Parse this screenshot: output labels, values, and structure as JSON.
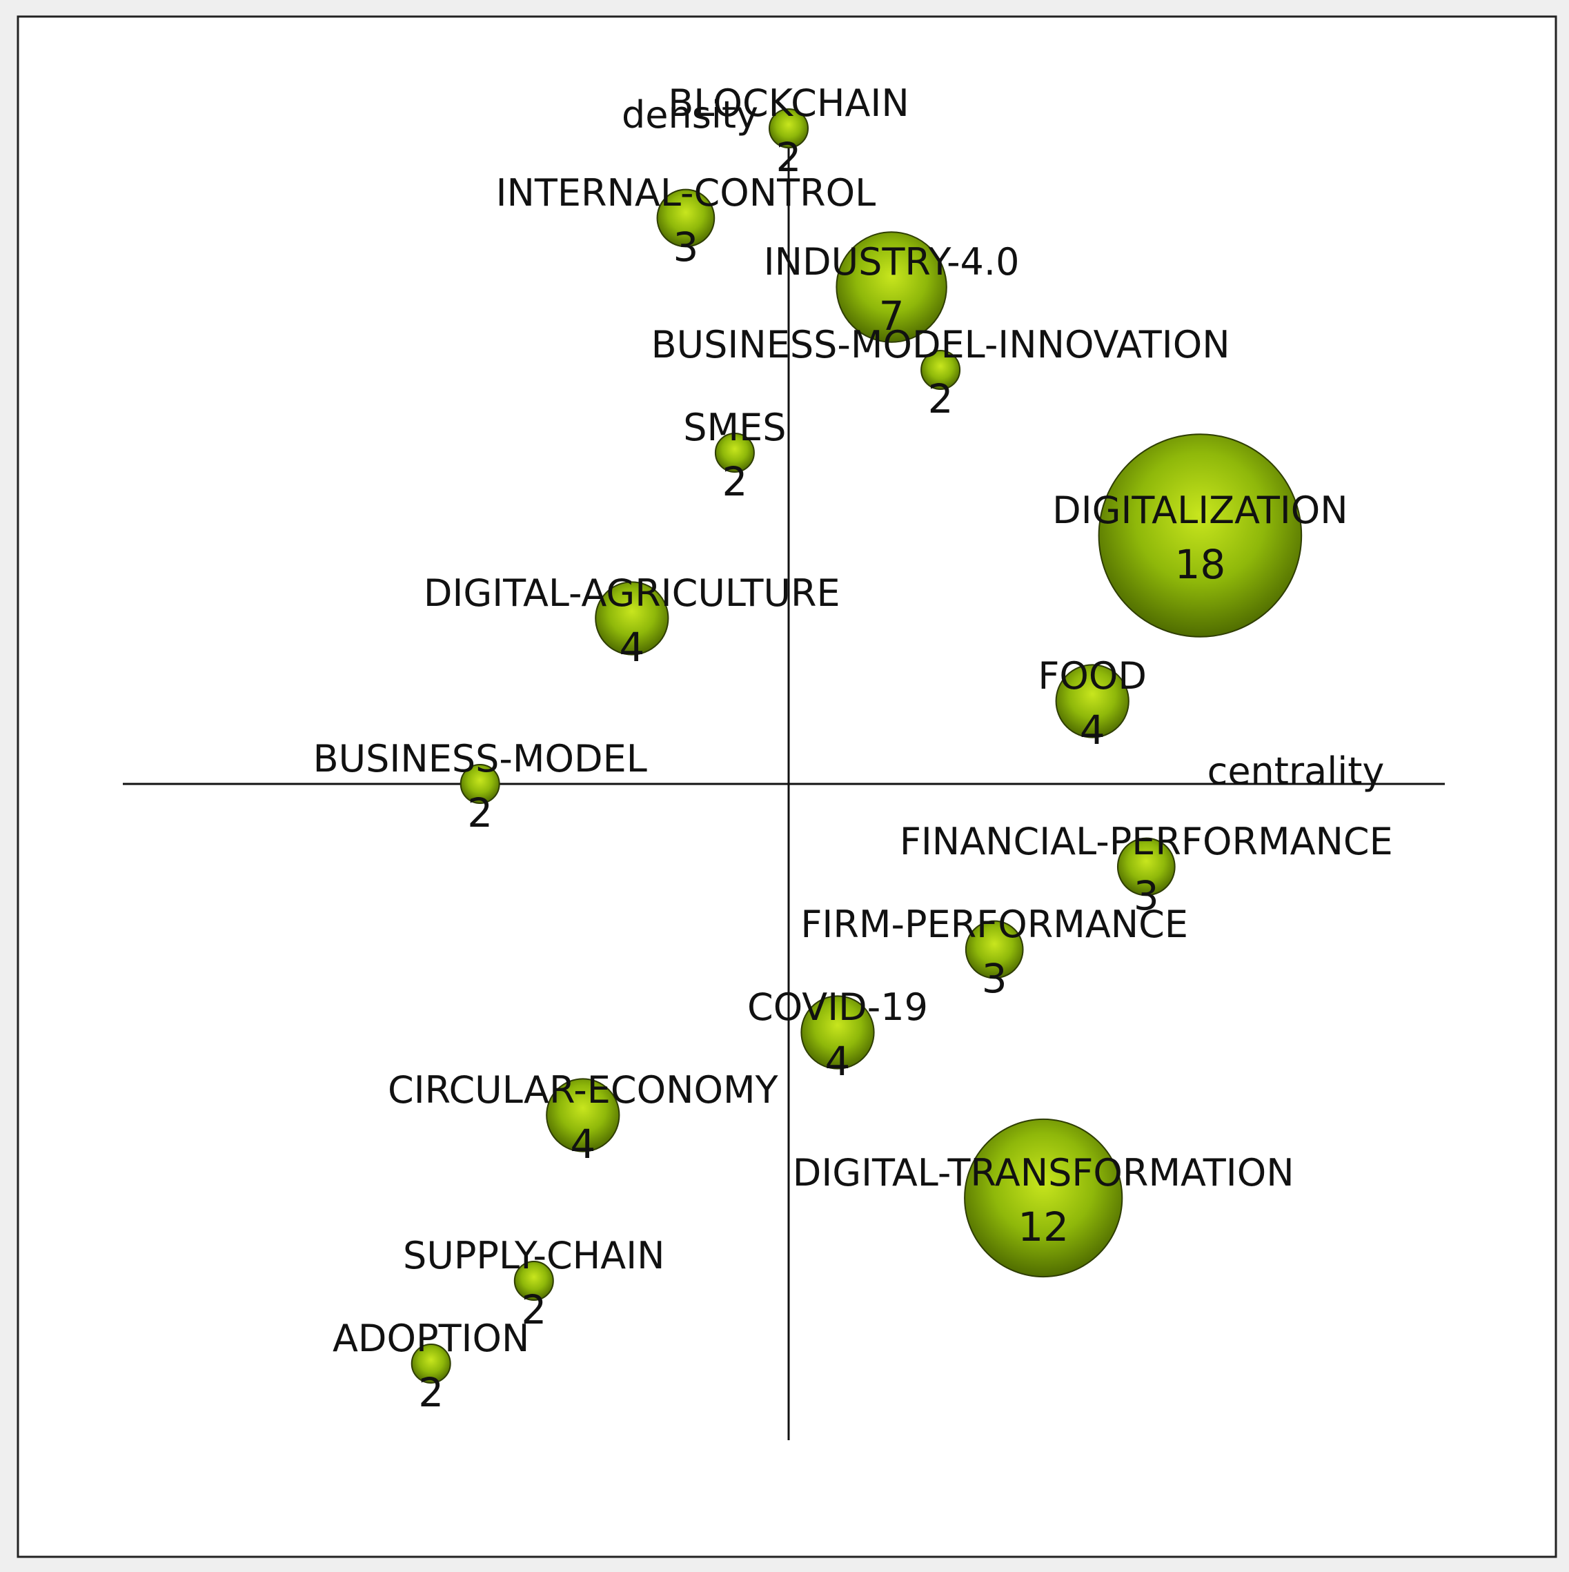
{
  "chart_data": {
    "type": "bubble-strategic-diagram",
    "xlabel": "centrality",
    "ylabel": "density",
    "bubble_color": "#8fb80a",
    "bubble_highlight": "#c8e61e",
    "bubble_dark": "#4f6c00",
    "themes": [
      {
        "name": "BLOCKCHAIN",
        "count": "2",
        "x": 0.0,
        "y": 9.5
      },
      {
        "name": "INTERNAL-CONTROL",
        "count": "3",
        "x": -2.1,
        "y": 8.2
      },
      {
        "name": "INDUSTRY-4.0",
        "count": "7",
        "x": 2.1,
        "y": 7.2
      },
      {
        "name": "BUSINESS-MODEL-INNOVATION",
        "count": "2",
        "x": 3.1,
        "y": 6.0
      },
      {
        "name": "SMES",
        "count": "2",
        "x": -1.1,
        "y": 4.8
      },
      {
        "name": "DIGITALIZATION",
        "count": "18",
        "x": 8.4,
        "y": 3.6
      },
      {
        "name": "DIGITAL-AGRICULTURE",
        "count": "4",
        "x": -3.2,
        "y": 2.4
      },
      {
        "name": "FOOD",
        "count": "4",
        "x": 6.2,
        "y": 1.2
      },
      {
        "name": "BUSINESS-MODEL",
        "count": "2",
        "x": -6.3,
        "y": 0.0
      },
      {
        "name": "FINANCIAL-PERFORMANCE",
        "count": "3",
        "x": 7.3,
        "y": -1.2
      },
      {
        "name": "FIRM-PERFORMANCE",
        "count": "3",
        "x": 4.2,
        "y": -2.4
      },
      {
        "name": "COVID-19",
        "count": "4",
        "x": 1.0,
        "y": -3.6
      },
      {
        "name": "CIRCULAR-ECONOMY",
        "count": "4",
        "x": -4.2,
        "y": -4.8
      },
      {
        "name": "DIGITAL-TRANSFORMATION",
        "count": "12",
        "x": 5.2,
        "y": -6.0
      },
      {
        "name": "SUPPLY-CHAIN",
        "count": "2",
        "x": -5.2,
        "y": -7.2
      },
      {
        "name": "ADOPTION",
        "count": "2",
        "x": -7.3,
        "y": -8.4
      }
    ]
  }
}
